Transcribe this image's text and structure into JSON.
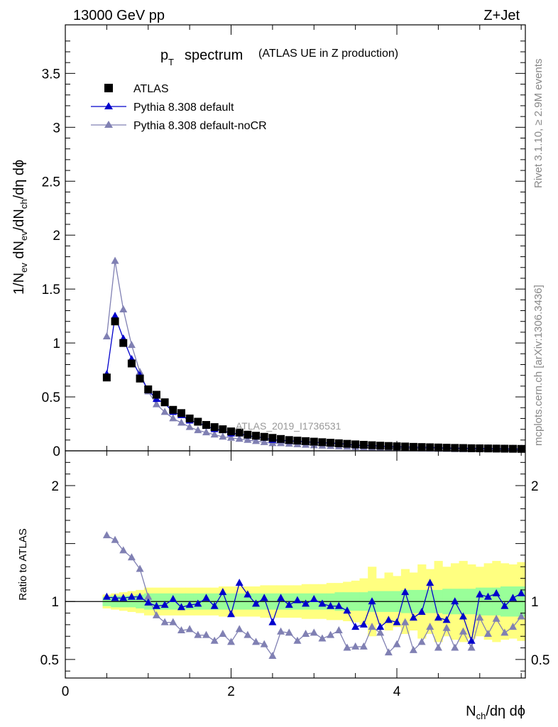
{
  "header": {
    "energy_label": "13000 GeV pp",
    "process_label": "Z+Jet"
  },
  "side_labels": {
    "rivet": "Rivet 3.1.10, ≥ 2.9M events",
    "mcplots": "mcplots.cern.ch [arXiv:1306.3436]"
  },
  "colors": {
    "atlas": "#000000",
    "default": "#0000cc",
    "nocr": "#8080b3",
    "band_inner": "#99ff99",
    "band_outer": "#ffff80"
  },
  "chart_data": [
    {
      "type": "line",
      "title_main": "p",
      "title_sub": "T",
      "title_word": "spectrum",
      "title_paren": "(ATLAS UE in Z production)",
      "ylabel": "1/N_ev dN_ev/dN_ch/dη dϕ",
      "watermark": "ATLAS_2019_I1736531",
      "xlim": [
        0,
        5.55
      ],
      "ylim": [
        0,
        3.95
      ],
      "yticks": [
        "0",
        "0.5",
        "1",
        "1.5",
        "2",
        "2.5",
        "3",
        "3.5"
      ],
      "legend_position": "top-left",
      "x": [
        0.5,
        0.6,
        0.7,
        0.8,
        0.9,
        1.0,
        1.1,
        1.2,
        1.3,
        1.4,
        1.5,
        1.6,
        1.7,
        1.8,
        1.9,
        2.0,
        2.1,
        2.2,
        2.3,
        2.4,
        2.5,
        2.6,
        2.7,
        2.8,
        2.9,
        3.0,
        3.1,
        3.2,
        3.3,
        3.4,
        3.5,
        3.6,
        3.7,
        3.8,
        3.9,
        4.0,
        4.1,
        4.2,
        4.3,
        4.4,
        4.5,
        4.6,
        4.7,
        4.8,
        4.9,
        5.0,
        5.1,
        5.2,
        5.3,
        5.4,
        5.5
      ],
      "series": [
        {
          "name": "ATLAS",
          "values": [
            0.68,
            1.2,
            1.0,
            0.81,
            0.67,
            0.57,
            0.52,
            0.45,
            0.38,
            0.35,
            0.3,
            0.27,
            0.24,
            0.22,
            0.2,
            0.18,
            0.17,
            0.15,
            0.14,
            0.13,
            0.12,
            0.11,
            0.1,
            0.095,
            0.09,
            0.085,
            0.08,
            0.075,
            0.07,
            0.065,
            0.06,
            0.056,
            0.052,
            0.048,
            0.045,
            0.042,
            0.04,
            0.037,
            0.035,
            0.033,
            0.031,
            0.029,
            0.027,
            0.026,
            0.024,
            0.023,
            0.022,
            0.021,
            0.02,
            0.019,
            0.018
          ]
        },
        {
          "name": "Pythia 8.308 default",
          "values": [
            0.71,
            1.25,
            1.04,
            0.85,
            0.7,
            0.56,
            0.48,
            0.44,
            0.36,
            0.33,
            0.28,
            0.26,
            0.23,
            0.2,
            0.19,
            0.16,
            0.16,
            0.14,
            0.13,
            0.12,
            0.1,
            0.1,
            0.09,
            0.09,
            0.083,
            0.08,
            0.075,
            0.072,
            0.068,
            0.06,
            0.052,
            0.05,
            0.048,
            0.044,
            0.04,
            0.038,
            0.036,
            0.033,
            0.033,
            0.032,
            0.029,
            0.027,
            0.025,
            0.024,
            0.023,
            0.022,
            0.021,
            0.02,
            0.019,
            0.018,
            0.017
          ]
        },
        {
          "name": "Pythia 8.308 default-noCR",
          "values": [
            1.06,
            1.76,
            1.31,
            0.98,
            0.73,
            0.55,
            0.43,
            0.36,
            0.3,
            0.26,
            0.22,
            0.19,
            0.17,
            0.15,
            0.13,
            0.12,
            0.11,
            0.1,
            0.09,
            0.08,
            0.07,
            0.07,
            0.065,
            0.06,
            0.055,
            0.05,
            0.047,
            0.044,
            0.04,
            0.037,
            0.034,
            0.031,
            0.029,
            0.027,
            0.025,
            0.024,
            0.022,
            0.021,
            0.02,
            0.019,
            0.018,
            0.017,
            0.016,
            0.015,
            0.014,
            0.013,
            0.013,
            0.012,
            0.012,
            0.011,
            0.011
          ]
        }
      ]
    },
    {
      "type": "line",
      "ylabel": "Ratio to ATLAS",
      "xlabel": "N_ch/dη dϕ",
      "xlim": [
        0,
        5.55
      ],
      "ylim": [
        0.34,
        2.3
      ],
      "xticks": [
        "0",
        "2",
        "4"
      ],
      "yticks": [
        "0.5",
        "1",
        "2"
      ],
      "x": [
        0.5,
        0.6,
        0.7,
        0.8,
        0.9,
        1.0,
        1.1,
        1.2,
        1.3,
        1.4,
        1.5,
        1.6,
        1.7,
        1.8,
        1.9,
        2.0,
        2.1,
        2.2,
        2.3,
        2.4,
        2.5,
        2.6,
        2.7,
        2.8,
        2.9,
        3.0,
        3.1,
        3.2,
        3.3,
        3.4,
        3.5,
        3.6,
        3.7,
        3.8,
        3.9,
        4.0,
        4.1,
        4.2,
        4.3,
        4.4,
        4.5,
        4.6,
        4.7,
        4.8,
        4.9,
        5.0,
        5.1,
        5.2,
        5.3,
        5.4,
        5.5
      ],
      "band_inner": [
        0.04,
        0.05,
        0.05,
        0.05,
        0.06,
        0.07,
        0.07,
        0.07,
        0.07,
        0.07,
        0.07,
        0.07,
        0.07,
        0.07,
        0.07,
        0.07,
        0.07,
        0.07,
        0.07,
        0.07,
        0.07,
        0.07,
        0.07,
        0.07,
        0.07,
        0.07,
        0.07,
        0.07,
        0.08,
        0.08,
        0.08,
        0.08,
        0.09,
        0.09,
        0.09,
        0.09,
        0.1,
        0.1,
        0.1,
        0.1,
        0.1,
        0.11,
        0.11,
        0.11,
        0.11,
        0.12,
        0.12,
        0.12,
        0.13,
        0.13,
        0.13
      ],
      "band_outer": [
        0.06,
        0.07,
        0.08,
        0.09,
        0.1,
        0.12,
        0.12,
        0.12,
        0.12,
        0.12,
        0.12,
        0.12,
        0.12,
        0.12,
        0.13,
        0.13,
        0.13,
        0.13,
        0.13,
        0.14,
        0.14,
        0.14,
        0.14,
        0.14,
        0.15,
        0.15,
        0.15,
        0.16,
        0.16,
        0.17,
        0.18,
        0.2,
        0.3,
        0.2,
        0.25,
        0.22,
        0.28,
        0.25,
        0.32,
        0.28,
        0.35,
        0.3,
        0.33,
        0.35,
        0.32,
        0.3,
        0.33,
        0.35,
        0.33,
        0.32,
        0.34
      ],
      "series": [
        {
          "name": "Pythia 8.308 default",
          "values": [
            1.04,
            1.03,
            1.03,
            1.04,
            1.04,
            0.99,
            0.96,
            0.97,
            1.02,
            0.95,
            0.97,
            0.98,
            1.03,
            0.96,
            1.08,
            0.89,
            1.16,
            1.06,
            0.98,
            1.03,
            0.82,
            1.03,
            0.97,
            1.01,
            0.98,
            1.02,
            0.98,
            0.96,
            0.96,
            0.92,
            0.78,
            0.8,
            1.0,
            0.78,
            0.84,
            0.82,
            1.08,
            0.86,
            0.91,
            1.16,
            0.86,
            0.84,
            1.0,
            0.87,
            0.66,
            1.06,
            1.04,
            1.07,
            0.96,
            1.03,
            1.07
          ]
        },
        {
          "name": "Pythia 8.308 default-noCR",
          "values": [
            1.57,
            1.53,
            1.44,
            1.38,
            1.28,
            1.04,
            0.88,
            0.82,
            0.82,
            0.75,
            0.76,
            0.71,
            0.71,
            0.66,
            0.72,
            0.65,
            0.76,
            0.71,
            0.65,
            0.63,
            0.53,
            0.74,
            0.73,
            0.66,
            0.72,
            0.73,
            0.68,
            0.71,
            0.75,
            0.6,
            0.61,
            0.61,
            0.78,
            0.73,
            0.56,
            0.63,
            0.82,
            0.58,
            0.65,
            0.78,
            0.6,
            0.77,
            0.6,
            0.74,
            0.6,
            0.86,
            0.72,
            0.85,
            0.73,
            0.78,
            0.87
          ]
        }
      ]
    }
  ]
}
